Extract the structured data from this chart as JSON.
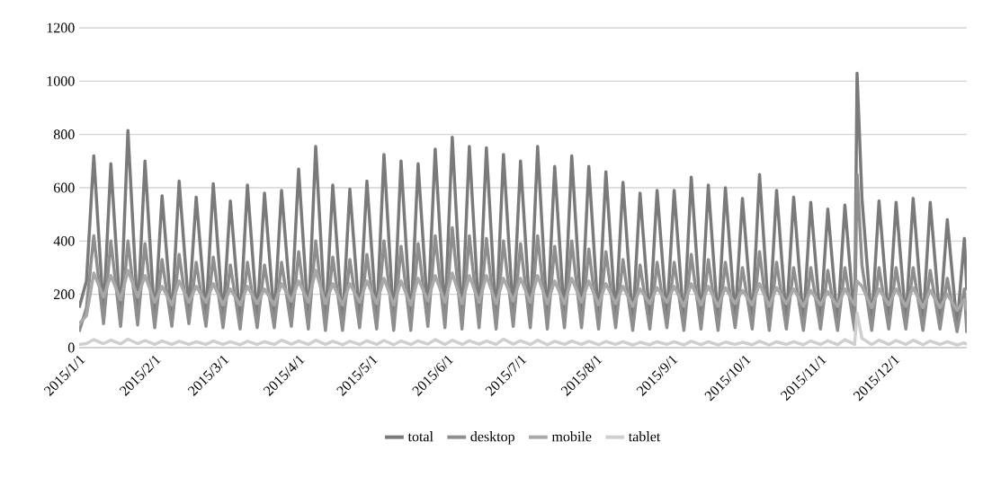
{
  "chart_data": {
    "type": "line",
    "x": [
      "2015-01-01",
      "2015-01-04",
      "2015-01-07",
      "2015-01-11",
      "2015-01-14",
      "2015-01-18",
      "2015-01-21",
      "2015-01-25",
      "2015-01-28",
      "2015-02-01",
      "2015-02-04",
      "2015-02-08",
      "2015-02-11",
      "2015-02-15",
      "2015-02-18",
      "2015-02-22",
      "2015-02-25",
      "2015-03-01",
      "2015-03-04",
      "2015-03-08",
      "2015-03-11",
      "2015-03-15",
      "2015-03-18",
      "2015-03-22",
      "2015-03-25",
      "2015-03-29",
      "2015-04-01",
      "2015-04-05",
      "2015-04-08",
      "2015-04-12",
      "2015-04-15",
      "2015-04-19",
      "2015-04-22",
      "2015-04-26",
      "2015-04-29",
      "2015-05-03",
      "2015-05-06",
      "2015-05-10",
      "2015-05-13",
      "2015-05-17",
      "2015-05-20",
      "2015-05-24",
      "2015-05-27",
      "2015-05-31",
      "2015-06-03",
      "2015-06-07",
      "2015-06-10",
      "2015-06-14",
      "2015-06-17",
      "2015-06-21",
      "2015-06-24",
      "2015-06-28",
      "2015-07-01",
      "2015-07-05",
      "2015-07-08",
      "2015-07-12",
      "2015-07-15",
      "2015-07-19",
      "2015-07-22",
      "2015-07-26",
      "2015-07-29",
      "2015-08-02",
      "2015-08-05",
      "2015-08-09",
      "2015-08-12",
      "2015-08-16",
      "2015-08-19",
      "2015-08-23",
      "2015-08-26",
      "2015-08-30",
      "2015-09-02",
      "2015-09-06",
      "2015-09-09",
      "2015-09-13",
      "2015-09-16",
      "2015-09-20",
      "2015-09-23",
      "2015-09-27",
      "2015-09-30",
      "2015-10-04",
      "2015-10-07",
      "2015-10-11",
      "2015-10-14",
      "2015-10-18",
      "2015-10-21",
      "2015-10-25",
      "2015-10-28",
      "2015-11-01",
      "2015-11-04",
      "2015-11-08",
      "2015-11-11",
      "2015-11-15",
      "2015-11-16",
      "2015-11-18",
      "2015-11-22",
      "2015-11-25",
      "2015-11-29",
      "2015-12-02",
      "2015-12-06",
      "2015-12-09",
      "2015-12-13",
      "2015-12-16",
      "2015-12-20",
      "2015-12-23",
      "2015-12-27",
      "2015-12-30",
      "2015-12-31"
    ],
    "series": [
      {
        "name": "total",
        "color": "#7a7a7a",
        "values": [
          150,
          250,
          720,
          130,
          690,
          110,
          815,
          120,
          700,
          100,
          570,
          110,
          625,
          140,
          565,
          120,
          615,
          110,
          550,
          100,
          610,
          110,
          580,
          110,
          590,
          130,
          670,
          100,
          755,
          90,
          610,
          90,
          595,
          110,
          625,
          100,
          725,
          90,
          700,
          90,
          690,
          120,
          745,
          110,
          790,
          100,
          755,
          110,
          750,
          100,
          725,
          120,
          700,
          110,
          755,
          100,
          680,
          110,
          720,
          110,
          680,
          100,
          660,
          110,
          620,
          90,
          580,
          100,
          590,
          110,
          590,
          90,
          640,
          100,
          610,
          90,
          600,
          110,
          560,
          100,
          650,
          90,
          590,
          100,
          565,
          90,
          545,
          100,
          520,
          90,
          535,
          90,
          1030,
          560,
          90,
          550,
          100,
          545,
          100,
          560,
          90,
          545,
          100,
          480,
          80,
          410,
          215
        ]
      },
      {
        "name": "desktop",
        "color": "#8e8e8e",
        "values": [
          60,
          150,
          420,
          90,
          400,
          80,
          400,
          85,
          390,
          75,
          330,
          80,
          350,
          90,
          320,
          80,
          340,
          75,
          310,
          70,
          320,
          75,
          310,
          75,
          320,
          80,
          360,
          70,
          400,
          65,
          340,
          65,
          330,
          75,
          350,
          70,
          400,
          65,
          380,
          65,
          390,
          80,
          420,
          75,
          450,
          70,
          420,
          75,
          410,
          70,
          400,
          80,
          390,
          75,
          420,
          70,
          380,
          75,
          400,
          75,
          370,
          70,
          360,
          75,
          330,
          65,
          310,
          70,
          320,
          75,
          320,
          65,
          350,
          70,
          330,
          65,
          320,
          75,
          300,
          70,
          360,
          65,
          320,
          70,
          300,
          65,
          300,
          70,
          290,
          65,
          300,
          65,
          650,
          310,
          65,
          300,
          70,
          300,
          70,
          300,
          65,
          290,
          70,
          260,
          60,
          220,
          55
        ]
      },
      {
        "name": "mobile",
        "color": "#a8a8a8",
        "values": [
          90,
          120,
          280,
          190,
          270,
          180,
          290,
          190,
          270,
          170,
          230,
          160,
          250,
          170,
          230,
          170,
          240,
          160,
          220,
          160,
          230,
          165,
          220,
          160,
          240,
          175,
          250,
          170,
          290,
          165,
          240,
          160,
          240,
          170,
          250,
          165,
          260,
          160,
          250,
          160,
          260,
          175,
          270,
          170,
          280,
          165,
          270,
          170,
          270,
          165,
          260,
          175,
          260,
          170,
          270,
          165,
          250,
          165,
          260,
          170,
          250,
          160,
          240,
          165,
          230,
          155,
          220,
          165,
          225,
          170,
          230,
          155,
          240,
          160,
          230,
          155,
          225,
          165,
          215,
          160,
          240,
          155,
          225,
          165,
          220,
          155,
          215,
          160,
          210,
          155,
          220,
          160,
          250,
          230,
          150,
          220,
          160,
          220,
          155,
          225,
          150,
          215,
          150,
          200,
          140,
          180,
          140
        ]
      },
      {
        "name": "tablet",
        "color": "#cfcfcf",
        "values": [
          12,
          15,
          30,
          15,
          28,
          14,
          32,
          15,
          27,
          12,
          25,
          12,
          24,
          12,
          22,
          12,
          25,
          12,
          22,
          11,
          24,
          12,
          22,
          12,
          28,
          13,
          25,
          12,
          28,
          12,
          24,
          11,
          24,
          12,
          26,
          12,
          27,
          11,
          25,
          12,
          26,
          13,
          30,
          12,
          28,
          12,
          26,
          13,
          25,
          12,
          32,
          13,
          26,
          12,
          28,
          11,
          24,
          12,
          25,
          12,
          24,
          11,
          23,
          12,
          22,
          10,
          20,
          11,
          22,
          12,
          22,
          10,
          24,
          11,
          22,
          10,
          21,
          12,
          20,
          11,
          24,
          10,
          22,
          12,
          22,
          11,
          25,
          12,
          26,
          11,
          30,
          12,
          130,
          35,
          12,
          28,
          12,
          27,
          12,
          28,
          11,
          25,
          12,
          22,
          10,
          18,
          12
        ]
      }
    ],
    "xlim": [
      "2015-01-01",
      "2015-12-31"
    ],
    "xticks": [
      {
        "value": "2015-01-01",
        "label": "2015/1/1"
      },
      {
        "value": "2015-02-01",
        "label": "2015/2/1"
      },
      {
        "value": "2015-03-01",
        "label": "2015/3/1"
      },
      {
        "value": "2015-04-01",
        "label": "2015/4/1"
      },
      {
        "value": "2015-05-01",
        "label": "2015/5/1"
      },
      {
        "value": "2015-06-01",
        "label": "2015/6/1"
      },
      {
        "value": "2015-07-01",
        "label": "2015/7/1"
      },
      {
        "value": "2015-08-01",
        "label": "2015/8/1"
      },
      {
        "value": "2015-09-01",
        "label": "2015/9/1"
      },
      {
        "value": "2015-10-01",
        "label": "2015/10/1"
      },
      {
        "value": "2015-11-01",
        "label": "2015/11/1"
      },
      {
        "value": "2015-12-01",
        "label": "2015/12/1"
      }
    ],
    "ylim": [
      0,
      1200
    ],
    "yticks": [
      0,
      200,
      400,
      600,
      800,
      1000,
      1200
    ],
    "grid": "y",
    "legend": "bottom",
    "marker": "none",
    "line_style": "solid"
  }
}
